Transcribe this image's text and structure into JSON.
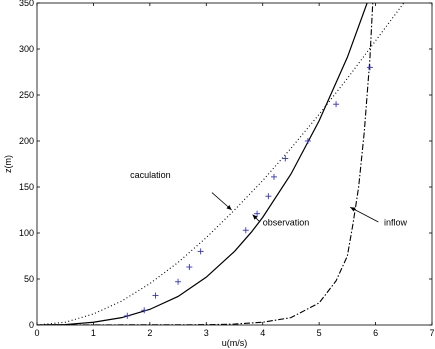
{
  "chart_data": {
    "type": "line",
    "title": "",
    "xlabel": "u(m/s)",
    "ylabel": "z(m)",
    "xlim": [
      0,
      7
    ],
    "ylim": [
      0,
      350
    ],
    "x_ticks": [
      0,
      1,
      2,
      3,
      4,
      5,
      6,
      7
    ],
    "y_ticks": [
      0,
      50,
      100,
      150,
      200,
      250,
      300,
      350
    ],
    "x_tick_labels": [
      "0",
      "1",
      "2",
      "3",
      "4",
      "5",
      "6",
      "7"
    ],
    "y_tick_labels": [
      "0",
      "50",
      "100",
      "150",
      "200",
      "250",
      "300",
      "350"
    ],
    "grid": false,
    "legend": false,
    "series": [
      {
        "label": "caculation",
        "style": "dotted",
        "color": "#000000",
        "points": [
          [
            0,
            0
          ],
          [
            0.5,
            3
          ],
          [
            1,
            12
          ],
          [
            1.5,
            26
          ],
          [
            2,
            45
          ],
          [
            2.5,
            68
          ],
          [
            3,
            95
          ],
          [
            3.5,
            125
          ],
          [
            4,
            157
          ],
          [
            4.5,
            192
          ],
          [
            5,
            229
          ],
          [
            5.5,
            268
          ],
          [
            6,
            309
          ],
          [
            6.5,
            350
          ]
        ]
      },
      {
        "label": "observation",
        "style": "solid",
        "color": "#000000",
        "points": [
          [
            0,
            0
          ],
          [
            0.5,
            0.5
          ],
          [
            1,
            3
          ],
          [
            1.5,
            8
          ],
          [
            2,
            17
          ],
          [
            2.5,
            31
          ],
          [
            3,
            52
          ],
          [
            3.5,
            80
          ],
          [
            3.8,
            101
          ],
          [
            4,
            117
          ],
          [
            4.5,
            164
          ],
          [
            5,
            222
          ],
          [
            5.5,
            291
          ],
          [
            5.85,
            350
          ]
        ]
      },
      {
        "label": "inflow",
        "style": "dashdot",
        "color": "#000000",
        "points": [
          [
            0,
            0
          ],
          [
            3,
            0.3
          ],
          [
            3.5,
            1
          ],
          [
            4,
            3
          ],
          [
            4.5,
            8
          ],
          [
            5,
            24
          ],
          [
            5.3,
            48
          ],
          [
            5.5,
            75
          ],
          [
            5.6,
            110
          ],
          [
            5.7,
            150
          ],
          [
            5.8,
            210
          ],
          [
            5.9,
            290
          ],
          [
            5.95,
            350
          ]
        ]
      },
      {
        "label": "",
        "style": "markers",
        "marker": "+",
        "color": "#3333cc",
        "points": [
          [
            1.6,
            10
          ],
          [
            1.9,
            16
          ],
          [
            2.1,
            32
          ],
          [
            2.5,
            47
          ],
          [
            2.7,
            63
          ],
          [
            2.9,
            80
          ],
          [
            3.7,
            103
          ],
          [
            3.9,
            121
          ],
          [
            4.1,
            140
          ],
          [
            4.2,
            161
          ],
          [
            4.4,
            181
          ],
          [
            4.8,
            200
          ],
          [
            5.3,
            240
          ],
          [
            5.9,
            280
          ]
        ]
      }
    ],
    "annotations": [
      {
        "text": "caculation",
        "text_at": [
          1.65,
          160
        ],
        "arrow_from": [
          3.1,
          144
        ],
        "arrow_to": [
          3.45,
          125
        ],
        "color": "#000000"
      },
      {
        "text": "observation",
        "text_at": [
          4.0,
          108
        ],
        "arrow_from": [
          3.95,
          112
        ],
        "arrow_to": [
          3.82,
          120
        ],
        "color": "#000000"
      },
      {
        "text": "inflow",
        "text_at": [
          6.15,
          108
        ],
        "arrow_from": [
          6.05,
          112
        ],
        "arrow_to": [
          5.55,
          128
        ],
        "color": "#000000"
      }
    ]
  }
}
